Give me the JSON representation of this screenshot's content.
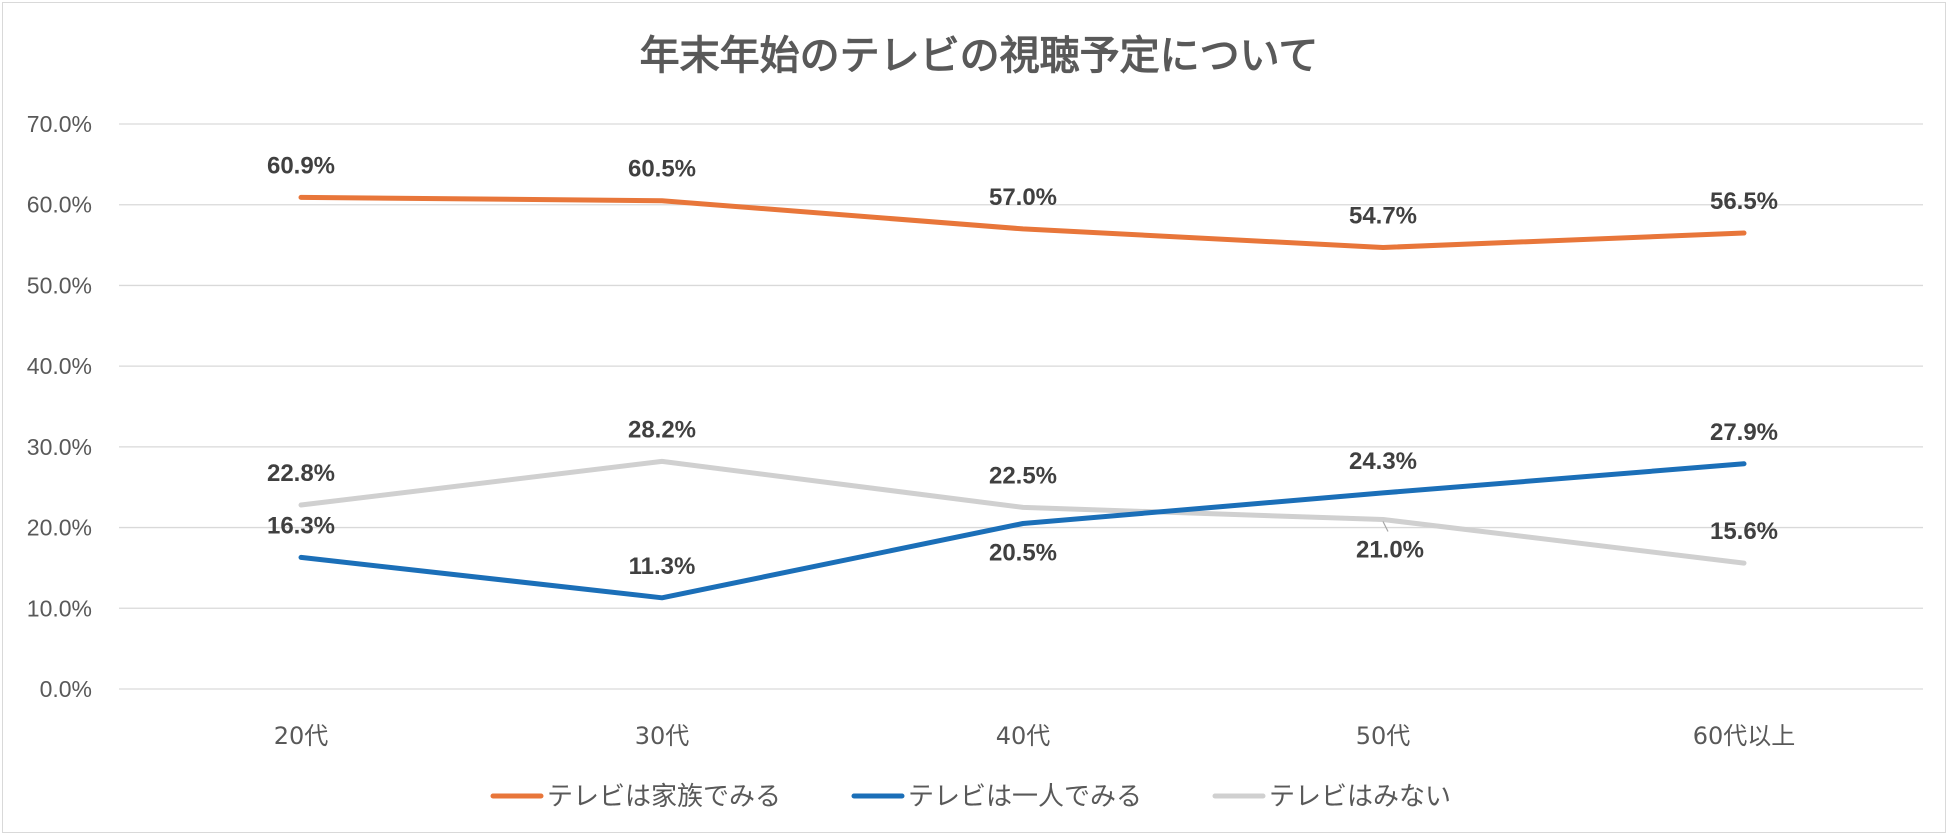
{
  "chart_data": {
    "type": "line",
    "title": "年末年始のテレビの視聴予定について",
    "categories": [
      "20代",
      "30代",
      "40代",
      "50代",
      "60代以上"
    ],
    "ylim": [
      0,
      70
    ],
    "ytick_values": [
      0,
      10,
      20,
      30,
      40,
      50,
      60,
      70
    ],
    "ytick_labels": [
      "0.0%",
      "10.0%",
      "20.0%",
      "30.0%",
      "40.0%",
      "50.0%",
      "60.0%",
      "70.0%"
    ],
    "grid": true,
    "legend_position": "bottom",
    "series": [
      {
        "name": "テレビは家族でみる",
        "color": "#e8763a",
        "values": [
          60.9,
          60.5,
          57.0,
          54.7,
          56.5
        ],
        "labels": [
          "60.9%",
          "60.5%",
          "57.0%",
          "54.7%",
          "56.5%"
        ],
        "label_pos": [
          "above",
          "above",
          "above",
          "above",
          "above"
        ]
      },
      {
        "name": "テレビは一人でみる",
        "color": "#1b6fb8",
        "values": [
          16.3,
          11.3,
          20.5,
          24.3,
          27.9
        ],
        "labels": [
          "16.3%",
          "11.3%",
          "20.5%",
          "24.3%",
          "27.9%"
        ],
        "label_pos": [
          "above",
          "above",
          "below",
          "above",
          "above"
        ]
      },
      {
        "name": "テレビはみない",
        "color": "#d0d0d0",
        "values": [
          22.8,
          28.2,
          22.5,
          21.0,
          15.6
        ],
        "labels": [
          "22.8%",
          "28.2%",
          "22.5%",
          "21.0%",
          "15.6%"
        ],
        "label_pos": [
          "above",
          "above",
          "above",
          "below-leader",
          "above"
        ]
      }
    ]
  }
}
